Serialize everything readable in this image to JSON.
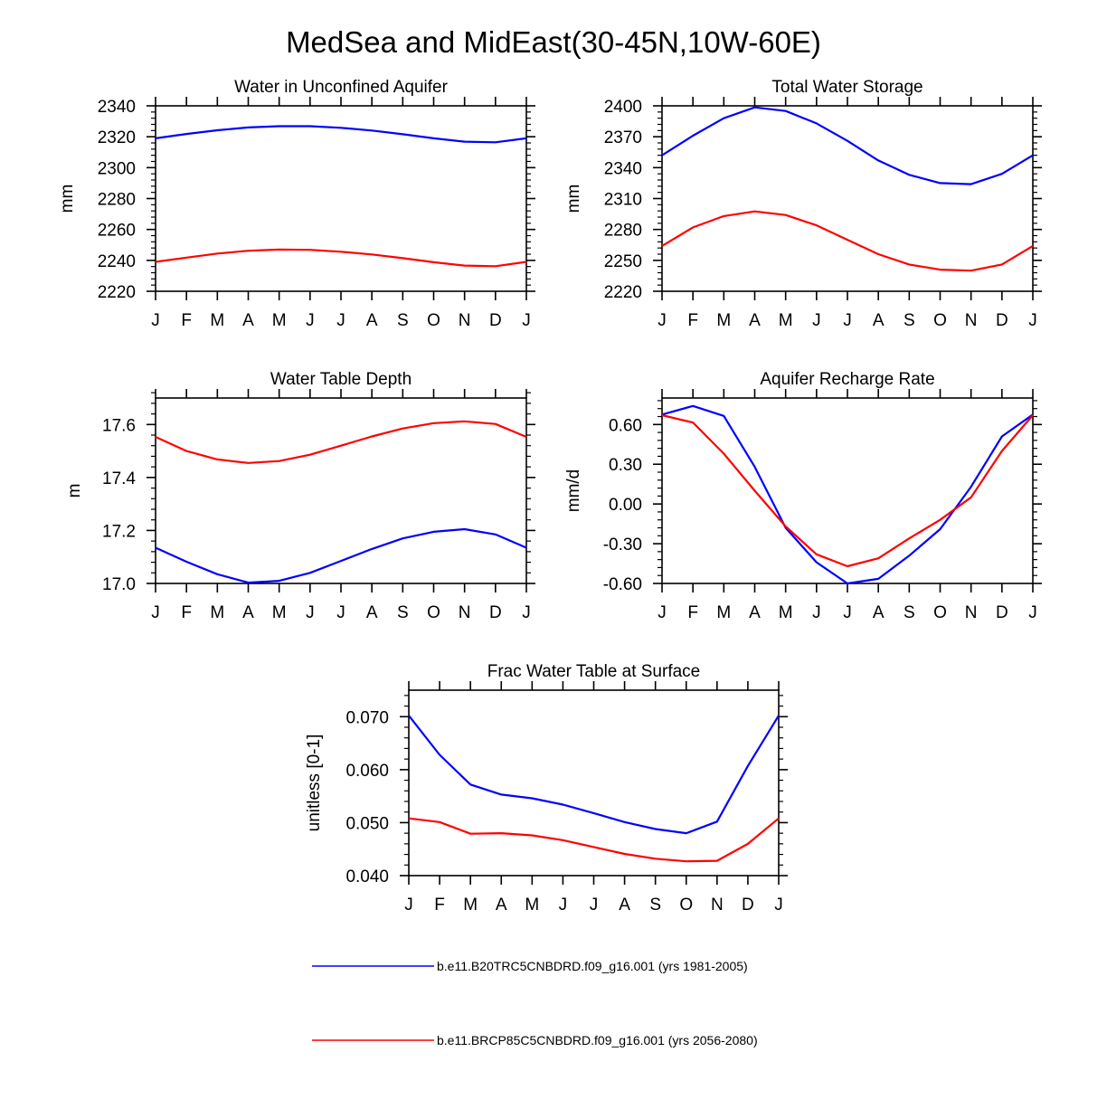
{
  "figure_title": "MedSea and MidEast(30-45N,10W-60E)",
  "legend": [
    {
      "label": "b.e11.B20TRC5CNBDRD.f09_g16.001 (yrs 1981-2005)",
      "color": "#0000ff"
    },
    {
      "label": "b.e11.BRCP85C5CNBDRD.f09_g16.001 (yrs 2056-2080)",
      "color": "#ff0000"
    }
  ],
  "chart_data": [
    {
      "type": "line",
      "title": "Water in Unconfined Aquifer",
      "xlabel": "",
      "ylabel": "mm",
      "categories": [
        "J",
        "F",
        "M",
        "A",
        "M",
        "J",
        "J",
        "A",
        "S",
        "O",
        "N",
        "D",
        "J"
      ],
      "ylim": [
        2220,
        2340
      ],
      "yticks": [
        2220,
        2240,
        2260,
        2280,
        2300,
        2320,
        2340
      ],
      "ytick_labels": [
        "2220",
        "2240",
        "2260",
        "2280",
        "2300",
        "2320",
        "2340"
      ],
      "series": [
        {
          "name": "b.e11.B20TRC5CNBDRD.f09_g16.001 (yrs 1981-2005)",
          "color": "#0000ff",
          "values": [
            2319,
            2321.8,
            2324.2,
            2326,
            2326.8,
            2326.8,
            2325.8,
            2324,
            2321.6,
            2319,
            2316.8,
            2316.4,
            2319
          ]
        },
        {
          "name": "b.e11.BRCP85C5CNBDRD.f09_g16.001 (yrs 2056-2080)",
          "color": "#ff0000",
          "values": [
            2239,
            2241.8,
            2244.4,
            2246.2,
            2247,
            2246.8,
            2245.6,
            2243.8,
            2241.4,
            2238.8,
            2236.6,
            2236.2,
            2239
          ]
        }
      ]
    },
    {
      "type": "line",
      "title": "Total Water Storage",
      "xlabel": "",
      "ylabel": "mm",
      "categories": [
        "J",
        "F",
        "M",
        "A",
        "M",
        "J",
        "J",
        "A",
        "S",
        "O",
        "N",
        "D",
        "J"
      ],
      "ylim": [
        2220,
        2400
      ],
      "yticks": [
        2220,
        2250,
        2280,
        2310,
        2340,
        2370,
        2400
      ],
      "ytick_labels": [
        "2220",
        "2250",
        "2280",
        "2310",
        "2340",
        "2370",
        "2400"
      ],
      "series": [
        {
          "name": "b.e11.B20TRC5CNBDRD.f09_g16.001 (yrs 1981-2005)",
          "color": "#0000ff",
          "values": [
            2352,
            2371,
            2388,
            2398.5,
            2395,
            2383,
            2366,
            2347,
            2333,
            2325,
            2324,
            2334,
            2352
          ]
        },
        {
          "name": "b.e11.BRCP85C5CNBDRD.f09_g16.001 (yrs 2056-2080)",
          "color": "#ff0000",
          "values": [
            2264,
            2282,
            2293,
            2297.5,
            2294,
            2284,
            2270,
            2256,
            2246,
            2241,
            2240,
            2246,
            2264
          ]
        }
      ]
    },
    {
      "type": "line",
      "title": "Water Table Depth",
      "xlabel": "",
      "ylabel": "m",
      "categories": [
        "J",
        "F",
        "M",
        "A",
        "M",
        "J",
        "J",
        "A",
        "S",
        "O",
        "N",
        "D",
        "J"
      ],
      "ylim": [
        17.0,
        17.7
      ],
      "yticks": [
        17.0,
        17.2,
        17.4,
        17.6
      ],
      "ytick_labels": [
        "17.0",
        "17.2",
        "17.4",
        "17.6"
      ],
      "series": [
        {
          "name": "b.e11.B20TRC5CNBDRD.f09_g16.001 (yrs 1981-2005)",
          "color": "#0000ff",
          "values": [
            17.135,
            17.082,
            17.035,
            17.003,
            17.01,
            17.04,
            17.085,
            17.13,
            17.17,
            17.195,
            17.205,
            17.185,
            17.135
          ]
        },
        {
          "name": "b.e11.BRCP85C5CNBDRD.f09_g16.001 (yrs 2056-2080)",
          "color": "#ff0000",
          "values": [
            17.553,
            17.5,
            17.468,
            17.455,
            17.462,
            17.486,
            17.52,
            17.555,
            17.585,
            17.605,
            17.612,
            17.602,
            17.553
          ]
        }
      ]
    },
    {
      "type": "line",
      "title": "Aquifer Recharge Rate",
      "xlabel": "",
      "ylabel": "mm/d",
      "categories": [
        "J",
        "F",
        "M",
        "A",
        "M",
        "J",
        "J",
        "A",
        "S",
        "O",
        "N",
        "D",
        "J"
      ],
      "ylim": [
        -0.6,
        0.8
      ],
      "yticks": [
        -0.6,
        -0.3,
        0.0,
        0.3,
        0.6
      ],
      "ytick_labels": [
        "-0.60",
        "-0.30",
        "0.00",
        "0.30",
        "0.60"
      ],
      "series": [
        {
          "name": "b.e11.B20TRC5CNBDRD.f09_g16.001 (yrs 1981-2005)",
          "color": "#0000ff",
          "values": [
            0.675,
            0.74,
            0.665,
            0.28,
            -0.18,
            -0.44,
            -0.6,
            -0.565,
            -0.39,
            -0.19,
            0.13,
            0.51,
            0.675
          ]
        },
        {
          "name": "b.e11.BRCP85C5CNBDRD.f09_g16.001 (yrs 2056-2080)",
          "color": "#ff0000",
          "values": [
            0.67,
            0.615,
            0.38,
            0.1,
            -0.17,
            -0.38,
            -0.47,
            -0.41,
            -0.26,
            -0.12,
            0.05,
            0.4,
            0.67
          ]
        }
      ]
    },
    {
      "type": "line",
      "title": "Frac Water Table at Surface",
      "xlabel": "",
      "ylabel": "unitless [0-1]",
      "categories": [
        "J",
        "F",
        "M",
        "A",
        "M",
        "J",
        "J",
        "A",
        "S",
        "O",
        "N",
        "D",
        "J"
      ],
      "ylim": [
        0.04,
        0.075
      ],
      "yticks": [
        0.04,
        0.05,
        0.06,
        0.07
      ],
      "ytick_labels": [
        "0.040",
        "0.050",
        "0.060",
        "0.070"
      ],
      "series": [
        {
          "name": "b.e11.B20TRC5CNBDRD.f09_g16.001 (yrs 1981-2005)",
          "color": "#0000ff",
          "values": [
            0.0702,
            0.0628,
            0.0572,
            0.0553,
            0.0546,
            0.0534,
            0.0518,
            0.0501,
            0.0488,
            0.048,
            0.0502,
            0.0607,
            0.0702
          ]
        },
        {
          "name": "b.e11.BRCP85C5CNBDRD.f09_g16.001 (yrs 2056-2080)",
          "color": "#ff0000",
          "values": [
            0.0508,
            0.0501,
            0.0479,
            0.048,
            0.0476,
            0.0467,
            0.0454,
            0.0441,
            0.0432,
            0.0427,
            0.0428,
            0.046,
            0.0508
          ]
        }
      ]
    }
  ]
}
